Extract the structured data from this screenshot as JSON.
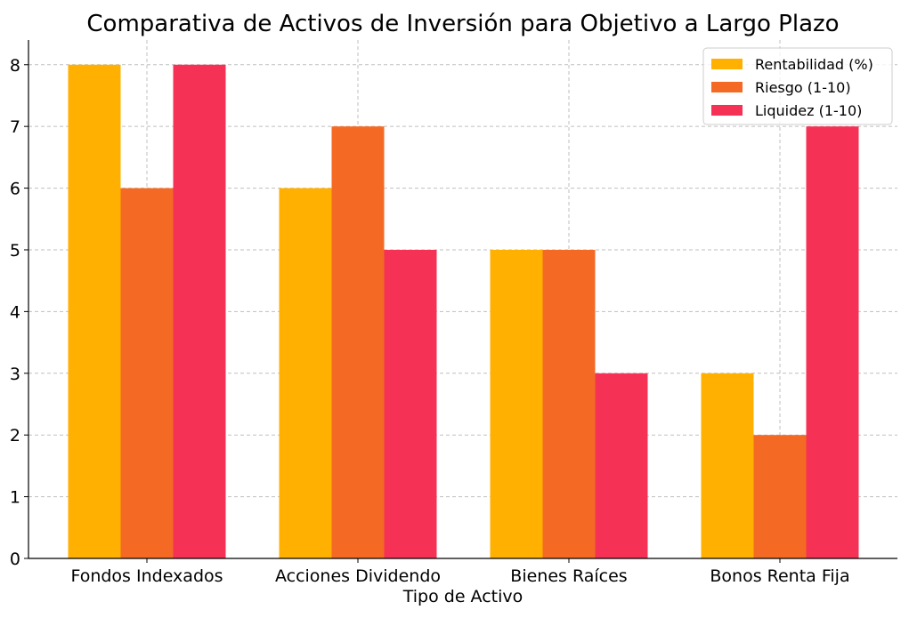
{
  "chart_data": {
    "type": "bar",
    "title": "Comparativa de Activos de Inversión para Objetivo a Largo Plazo",
    "xlabel": "Tipo de Activo",
    "ylabel": "",
    "categories": [
      "Fondos Indexados",
      "Acciones Dividendo",
      "Bienes Raíces",
      "Bonos Renta Fija"
    ],
    "series": [
      {
        "name": "Rentabilidad (%)",
        "values": [
          8,
          6,
          5,
          3
        ],
        "color": "#ffb000"
      },
      {
        "name": "Riesgo (1-10)",
        "values": [
          6,
          7,
          5,
          2
        ],
        "color": "#f46a25"
      },
      {
        "name": "Liquidez (1-10)",
        "values": [
          8,
          5,
          3,
          7
        ],
        "color": "#f53255"
      }
    ],
    "ylim": [
      0,
      8.4
    ],
    "yticks": [
      0,
      1,
      2,
      3,
      4,
      5,
      6,
      7,
      8
    ],
    "grid": true,
    "legend_position": "top-right"
  }
}
